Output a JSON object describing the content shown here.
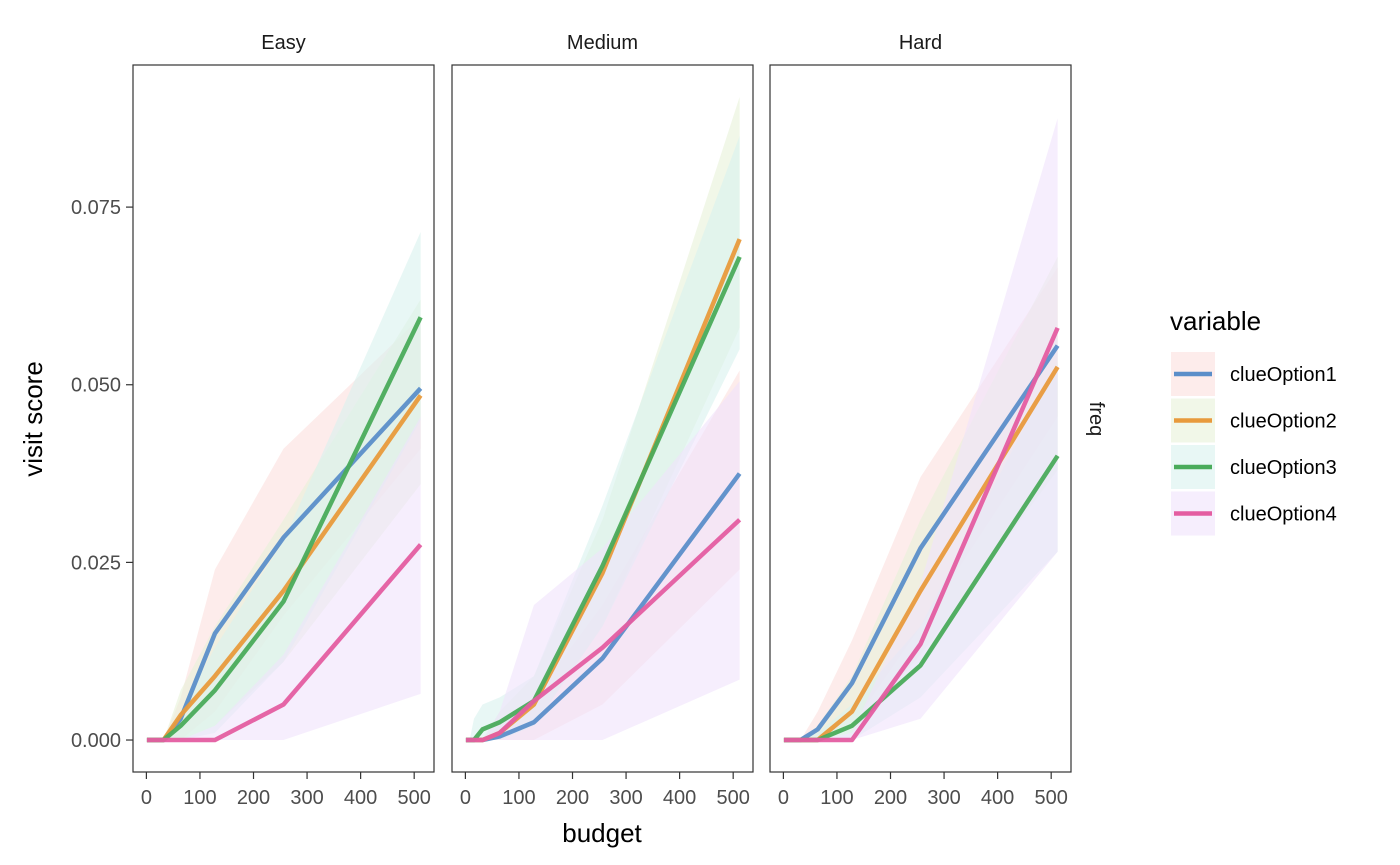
{
  "chart_data": {
    "type": "line",
    "facets": [
      "Easy",
      "Medium",
      "Hard"
    ],
    "facet_row_label": "freq",
    "xlabel": "budget",
    "ylabel": "visit score",
    "xlim": [
      -25,
      537
    ],
    "ylim": [
      -0.0045,
      0.095
    ],
    "x_ticks": [
      0,
      100,
      200,
      300,
      400,
      500
    ],
    "y_ticks": [
      0.0,
      0.025,
      0.05,
      0.075
    ],
    "y_tick_labels": [
      "0.000",
      "0.025",
      "0.050",
      "0.075"
    ],
    "x": [
      1,
      2,
      4,
      8,
      16,
      32,
      64,
      128,
      256,
      512
    ],
    "legend": {
      "title": "variable",
      "position": "right",
      "entries": [
        "clueOption1",
        "clueOption2",
        "clueOption3",
        "clueOption4"
      ]
    },
    "series_colors": {
      "clueOption1": {
        "line": "#5b8ec9",
        "band": "#fbe0de"
      },
      "clueOption2": {
        "line": "#e89a3c",
        "band": "#e8f2d8"
      },
      "clueOption3": {
        "line": "#4aab5b",
        "band": "#d8f2ee"
      },
      "clueOption4": {
        "line": "#e45da1",
        "band": "#f0e2fb"
      }
    },
    "panels": [
      {
        "facet": "Easy",
        "series": [
          {
            "name": "clueOption1",
            "values": [
              0,
              0,
              0,
              0,
              0,
              0,
              0.003,
              0.015,
              0.0285,
              0.0495
            ],
            "lower": [
              0,
              0,
              0,
              0,
              0,
              0,
              0,
              0.004,
              0.0175,
              0.041
            ],
            "upper": [
              0,
              0,
              0,
              0,
              0,
              0,
              0.006,
              0.024,
              0.041,
              0.0595
            ]
          },
          {
            "name": "clueOption2",
            "values": [
              0,
              0,
              0,
              0,
              0,
              0,
              0.0035,
              0.009,
              0.021,
              0.0485
            ],
            "lower": [
              0,
              0,
              0,
              0,
              0,
              0,
              0,
              0.002,
              0.011,
              0.036
            ],
            "upper": [
              0,
              0,
              0,
              0,
              0,
              0,
              0.007,
              0.016,
              0.031,
              0.062
            ]
          },
          {
            "name": "clueOption3",
            "values": [
              0,
              0,
              0,
              0,
              0,
              0,
              0.002,
              0.007,
              0.0195,
              0.0595
            ],
            "lower": [
              0,
              0,
              0,
              0,
              0,
              0,
              0,
              0.001,
              0.011,
              0.045
            ],
            "upper": [
              0,
              0,
              0,
              0,
              0,
              0,
              0.004,
              0.013,
              0.028,
              0.0715
            ]
          },
          {
            "name": "clueOption4",
            "values": [
              0,
              0,
              0,
              0,
              0,
              0,
              0,
              0,
              0.005,
              0.0275
            ],
            "lower": [
              0,
              0,
              0,
              0,
              0,
              0,
              0,
              0,
              0,
              0.0065
            ],
            "upper": [
              0,
              0,
              0,
              0,
              0,
              0,
              0,
              0.002,
              0.012,
              0.0455
            ]
          }
        ]
      },
      {
        "facet": "Medium",
        "series": [
          {
            "name": "clueOption1",
            "values": [
              0,
              0,
              0,
              0,
              0,
              0,
              0.0005,
              0.0025,
              0.0115,
              0.0375
            ],
            "lower": [
              0,
              0,
              0,
              0,
              0,
              0,
              0,
              0,
              0.005,
              0.024
            ],
            "upper": [
              0,
              0,
              0,
              0,
              0,
              0,
              0.002,
              0.006,
              0.019,
              0.052
            ]
          },
          {
            "name": "clueOption2",
            "values": [
              0,
              0,
              0,
              0,
              0,
              0,
              0.001,
              0.005,
              0.0235,
              0.0705
            ],
            "lower": [
              0,
              0,
              0,
              0,
              0,
              0,
              0,
              0.002,
              0.016,
              0.058
            ],
            "upper": [
              0,
              0,
              0,
              0,
              0,
              0,
              0.004,
              0.009,
              0.031,
              0.0905
            ]
          },
          {
            "name": "clueOption3",
            "values": [
              0,
              0,
              0,
              0,
              0,
              0.0015,
              0.0025,
              0.0055,
              0.0245,
              0.068
            ],
            "lower": [
              0,
              0,
              0,
              0,
              0,
              0,
              0,
              0.002,
              0.016,
              0.055
            ],
            "upper": [
              0,
              0,
              0,
              0,
              0.003,
              0.005,
              0.006,
              0.009,
              0.033,
              0.085
            ]
          },
          {
            "name": "clueOption4",
            "values": [
              0,
              0,
              0,
              0,
              0,
              0,
              0.001,
              0.0055,
              0.013,
              0.031
            ],
            "lower": [
              0,
              0,
              0,
              0,
              0,
              0,
              0,
              0,
              0,
              0.0085
            ],
            "upper": [
              0,
              0,
              0,
              0,
              0,
              0,
              0.004,
              0.019,
              0.027,
              0.0505
            ]
          }
        ]
      },
      {
        "facet": "Hard",
        "series": [
          {
            "name": "clueOption1",
            "values": [
              0,
              0,
              0,
              0,
              0,
              0,
              0.0015,
              0.008,
              0.027,
              0.0555
            ],
            "lower": [
              0,
              0,
              0,
              0,
              0,
              0,
              0,
              0.002,
              0.016,
              0.0455
            ],
            "upper": [
              0,
              0,
              0,
              0,
              0,
              0,
              0.004,
              0.014,
              0.037,
              0.0665
            ]
          },
          {
            "name": "clueOption2",
            "values": [
              0,
              0,
              0,
              0,
              0,
              0,
              0,
              0.004,
              0.021,
              0.0525
            ],
            "lower": [
              0,
              0,
              0,
              0,
              0,
              0,
              0,
              0.001,
              0.012,
              0.038
            ],
            "upper": [
              0,
              0,
              0,
              0,
              0,
              0,
              0.002,
              0.009,
              0.031,
              0.068
            ]
          },
          {
            "name": "clueOption3",
            "values": [
              0,
              0,
              0,
              0,
              0,
              0,
              0,
              0.002,
              0.0105,
              0.04
            ],
            "lower": [
              0,
              0,
              0,
              0,
              0,
              0,
              0,
              0,
              0.006,
              0.0265
            ],
            "upper": [
              0,
              0,
              0,
              0,
              0,
              0,
              0.001,
              0.005,
              0.016,
              0.053
            ]
          },
          {
            "name": "clueOption4",
            "values": [
              0,
              0,
              0,
              0,
              0,
              0,
              0,
              0,
              0.0135,
              0.058
            ],
            "lower": [
              0,
              0,
              0,
              0,
              0,
              0,
              0,
              0,
              0.003,
              0.0265
            ],
            "upper": [
              0,
              0,
              0,
              0,
              0,
              0,
              0,
              0.001,
              0.022,
              0.0875
            ]
          }
        ]
      }
    ]
  }
}
